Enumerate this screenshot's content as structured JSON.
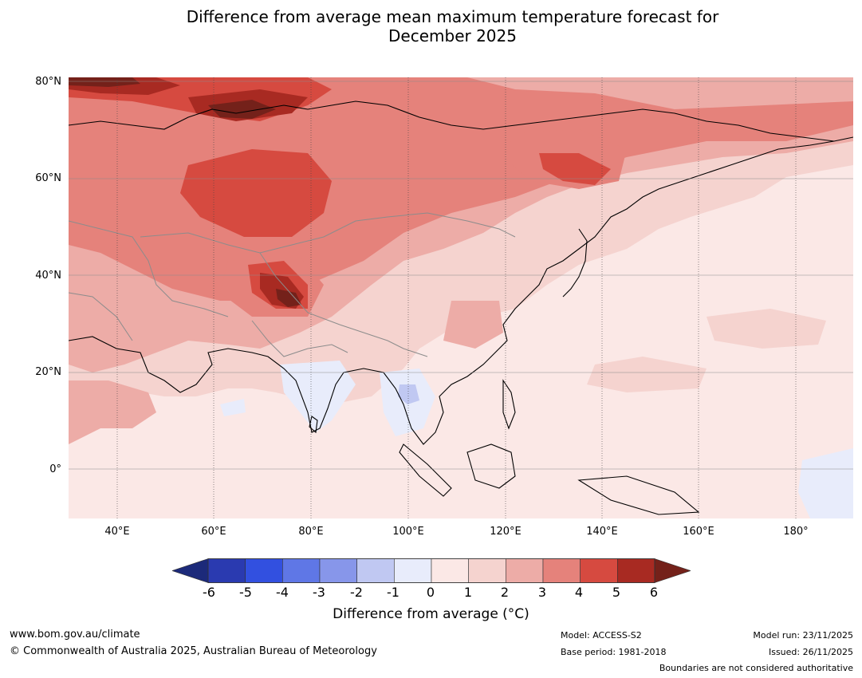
{
  "title": {
    "line1": "Difference from average mean maximum temperature forecast for",
    "line2": "December 2025"
  },
  "map": {
    "region": "Asia",
    "lat_labels": [
      "80°N",
      "60°N",
      "40°N",
      "20°N",
      "0°"
    ],
    "lon_labels": [
      "40°E",
      "60°E",
      "80°E",
      "100°E",
      "120°E",
      "140°E",
      "160°E",
      "180°"
    ],
    "feature_icons": [
      "coastline-icon",
      "border-icon",
      "gridline-icon"
    ]
  },
  "colorbar": {
    "tick_labels": [
      "-6",
      "-5",
      "-4",
      "-3",
      "-2",
      "-1",
      "0",
      "1",
      "2",
      "3",
      "4",
      "5",
      "6"
    ],
    "label": "Difference from average (°C)",
    "colors": {
      "lt_-6": "#1c2a7a",
      "-6_-5": "#2a3ab0",
      "-5_-4": "#3250e0",
      "-4_-3": "#5f77e6",
      "-3_-2": "#8796ea",
      "-2_-1": "#c0c8f2",
      "-1_0": "#e8ecfb",
      "0_1": "#fbe8e6",
      "1_2": "#f5d3cf",
      "2_3": "#edaca7",
      "3_4": "#e5827b",
      "4_5": "#d64a40",
      "5_6": "#a82a22",
      "gt_6": "#74211a"
    }
  },
  "footer": {
    "website": "www.bom.gov.au/climate",
    "copyright": "© Commonwealth of Australia 2025, Australian Bureau of Meteorology",
    "model": "Model: ACCESS-S2",
    "base_period": "Base period: 1981-2018",
    "model_run": "Model run: 23/11/2025",
    "issued": "Issued: 26/11/2025",
    "disclaimer": "Boundaries are not considered authoritative"
  }
}
